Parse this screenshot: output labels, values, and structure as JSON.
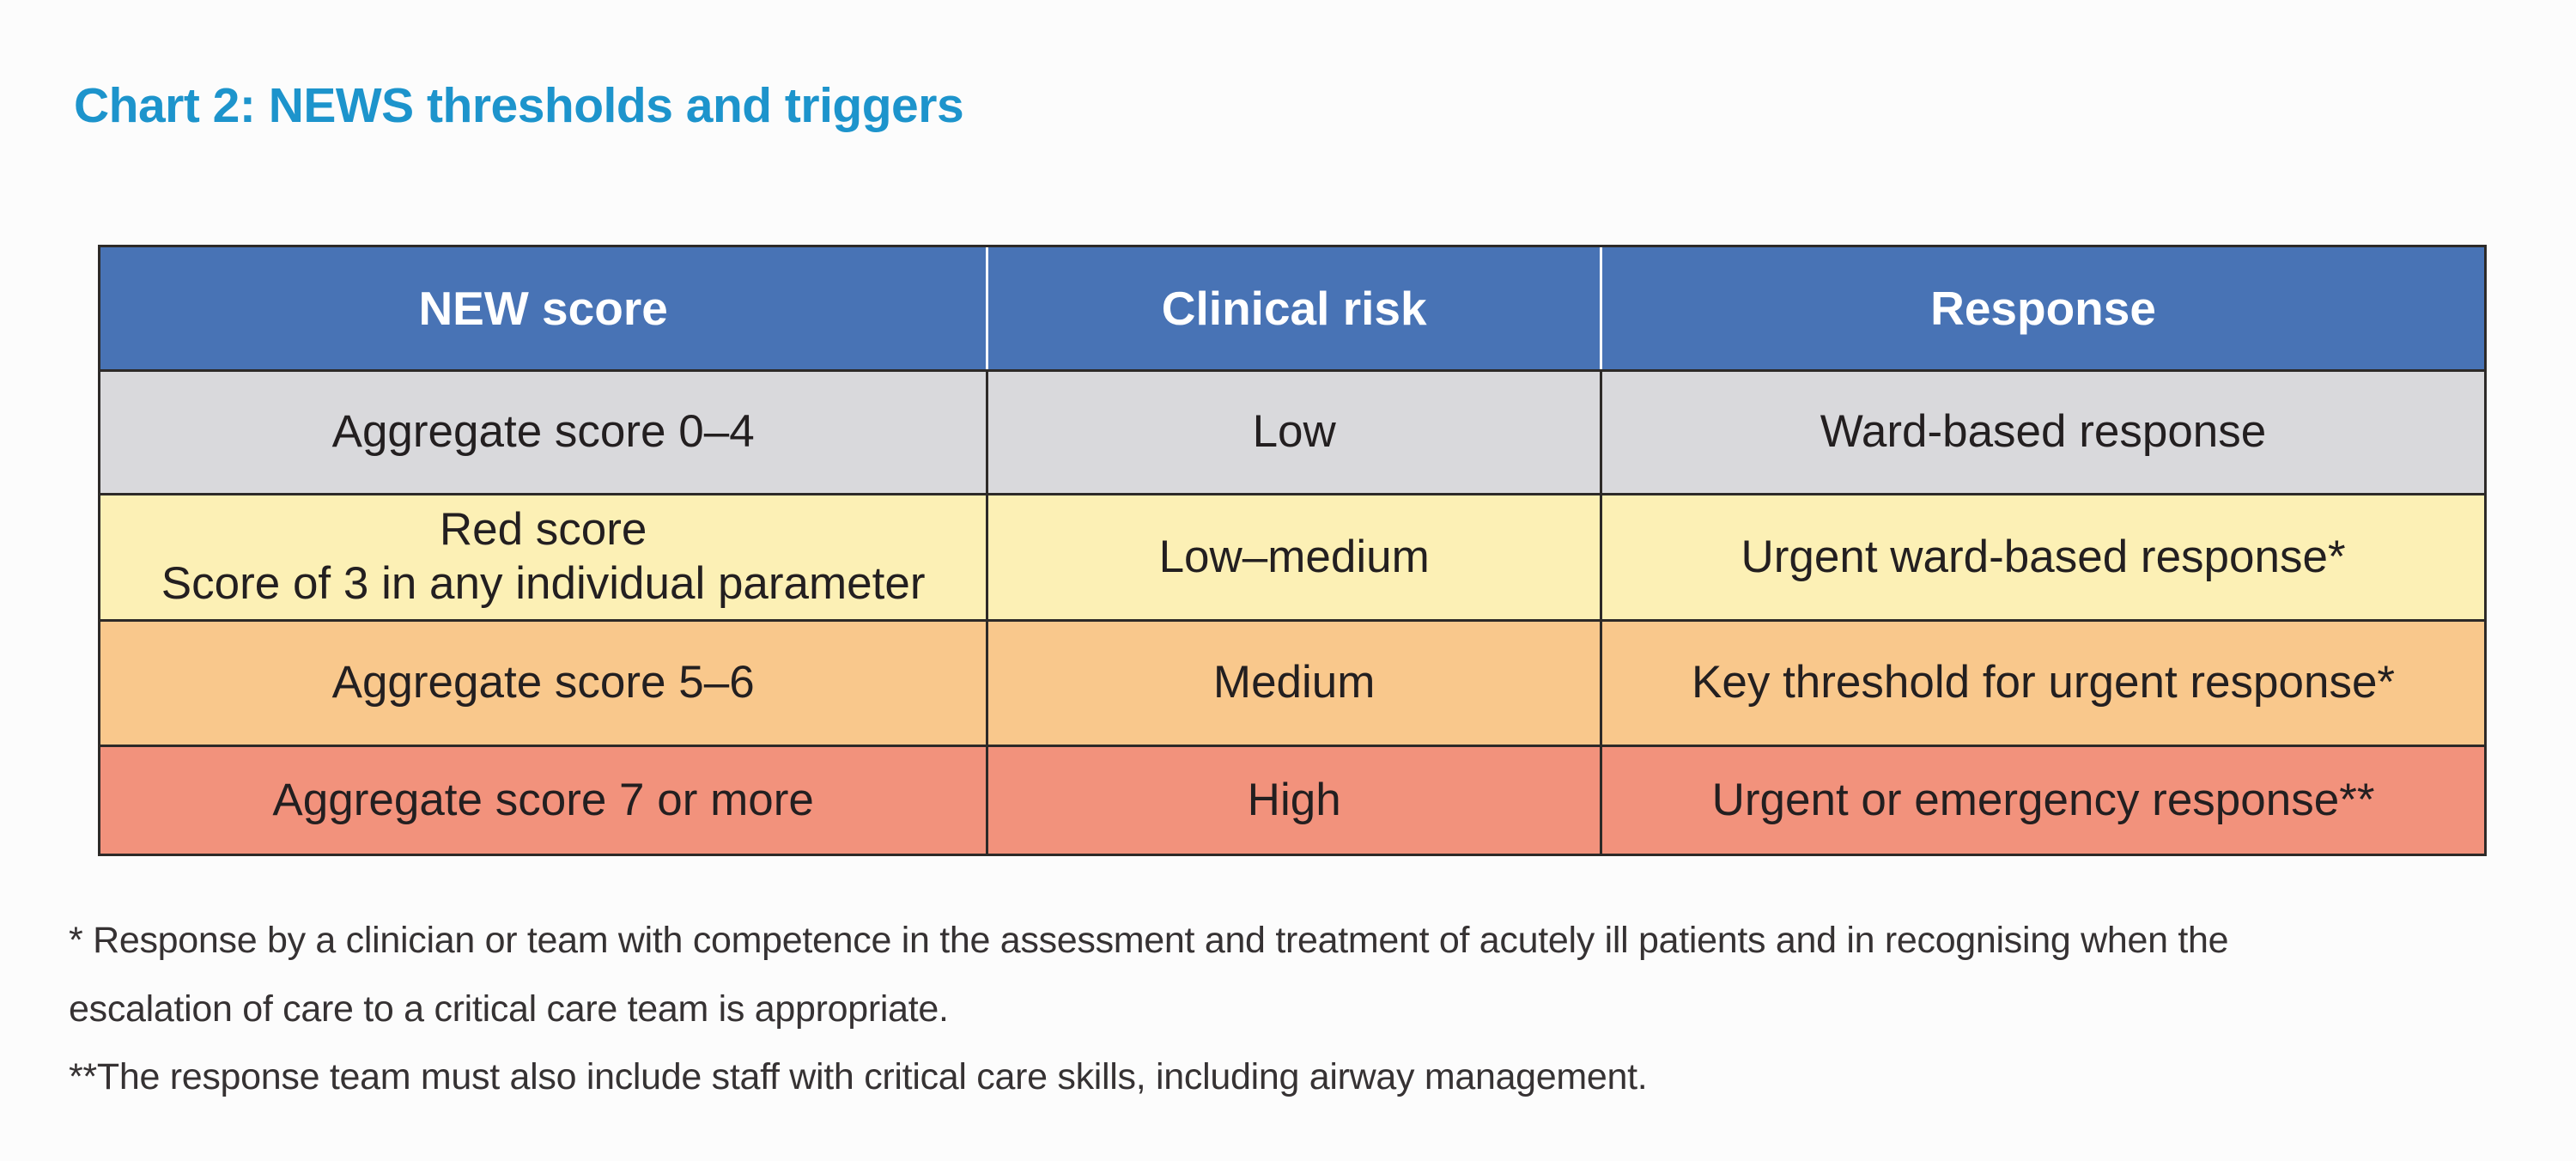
{
  "title": {
    "text": "Chart 2: NEWS thresholds and triggers",
    "color": "#1d94cc"
  },
  "table": {
    "header": {
      "bg": "#4873b5",
      "text_color": "#ffffff",
      "cells": [
        "NEW score",
        "Clinical risk",
        "Response"
      ]
    },
    "rows": [
      {
        "risk_color": "#d9d9dc",
        "cells": [
          "Aggregate score 0–4",
          "Low",
          "Ward-based response"
        ]
      },
      {
        "risk_color": "#fcf0b5",
        "cells": [
          "Red score\nScore of 3 in any individual parameter",
          "Low–medium",
          "Urgent ward-based response*"
        ]
      },
      {
        "risk_color": "#f9c88c",
        "cells": [
          "Aggregate score 5–6",
          "Medium",
          "Key threshold for urgent response*"
        ]
      },
      {
        "risk_color": "#f2927c",
        "cells": [
          "Aggregate score 7 or more",
          "High",
          "Urgent or emergency response**"
        ]
      }
    ]
  },
  "footnotes": {
    "first": "* Response by a clinician or team with competence in the assessment and treatment of acutely ill patients and in recognising when the\nescalation of care to a critical care team is appropriate.",
    "second": "**The response team must also include staff with critical care skills, including airway management."
  }
}
